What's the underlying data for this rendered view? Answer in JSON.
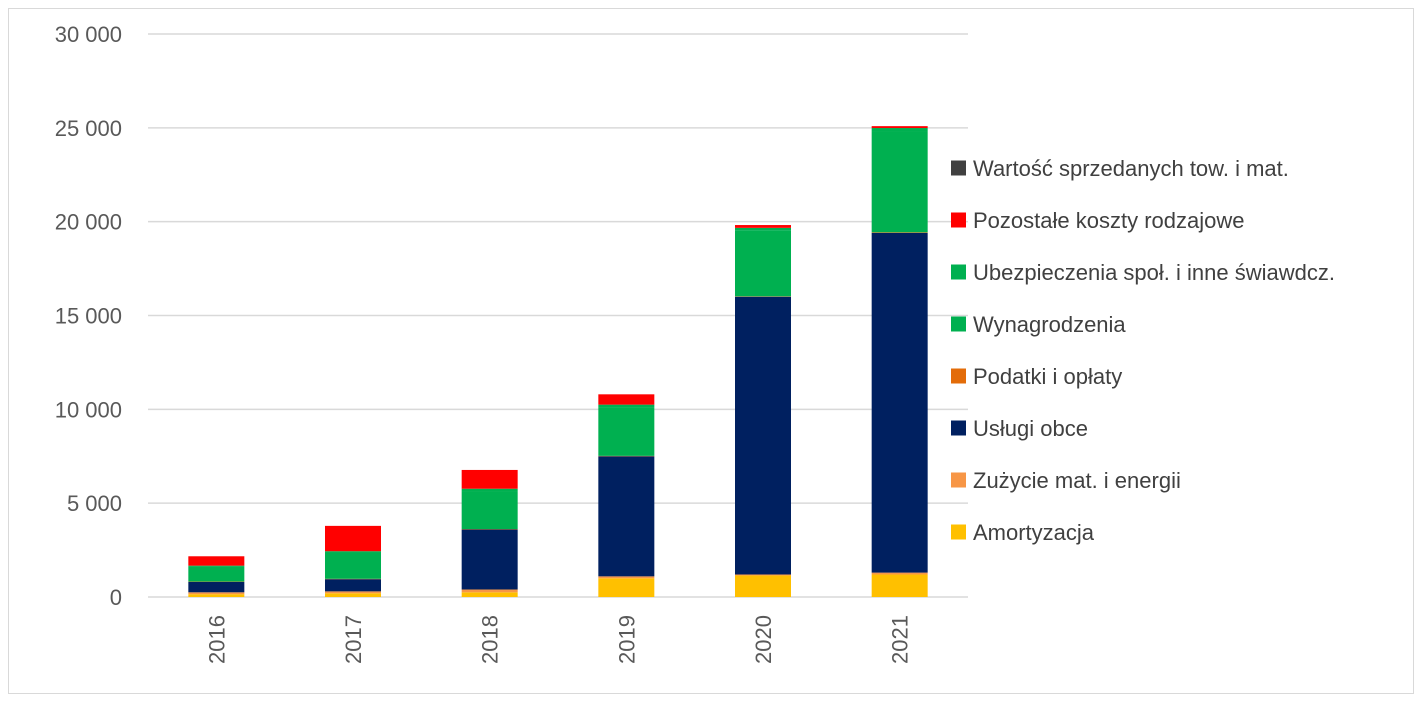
{
  "chart_data": {
    "type": "bar",
    "stacked": true,
    "title": "",
    "xlabel": "",
    "ylabel": "",
    "ylim": [
      0,
      30000
    ],
    "y_ticks": [
      0,
      5000,
      10000,
      15000,
      20000,
      25000,
      30000
    ],
    "y_tick_labels": [
      "0",
      "5 000",
      "10 000",
      "15 000",
      "20 000",
      "25 000",
      "30 000"
    ],
    "grid": "horizontal",
    "legend_position": "right",
    "categories": [
      "2016",
      "2017",
      "2018",
      "2019",
      "2020",
      "2021"
    ],
    "series": [
      {
        "name": "Amortyzacja",
        "color": "#FFC000",
        "values": [
          150,
          200,
          250,
          1000,
          1150,
          1200
        ]
      },
      {
        "name": "Zużycie mat. i energii",
        "color": "#F79646",
        "values": [
          100,
          100,
          150,
          100,
          50,
          100
        ]
      },
      {
        "name": "Usługi obce",
        "color": "#002060",
        "values": [
          550,
          650,
          3200,
          6400,
          14800,
          18100
        ]
      },
      {
        "name": "Podatki i opłaty",
        "color": "#E36C09",
        "values": [
          20,
          20,
          20,
          20,
          20,
          30
        ]
      },
      {
        "name": "Wynagrodzenia",
        "color": "#00B050",
        "values": [
          800,
          1400,
          2000,
          2600,
          3500,
          5400
        ]
      },
      {
        "name": "Ubezpieczenia społ. i inne świawdcz.",
        "color": "#00B050",
        "values": [
          50,
          70,
          150,
          130,
          150,
          160
        ]
      },
      {
        "name": "Pozostałe koszty rodzajowe",
        "color": "#FF0000",
        "values": [
          500,
          1350,
          1000,
          550,
          150,
          100
        ]
      },
      {
        "name": "Wartość sprzedanych tow. i mat.",
        "color": "#404040",
        "values": [
          0,
          0,
          0,
          0,
          0,
          0
        ]
      }
    ]
  }
}
